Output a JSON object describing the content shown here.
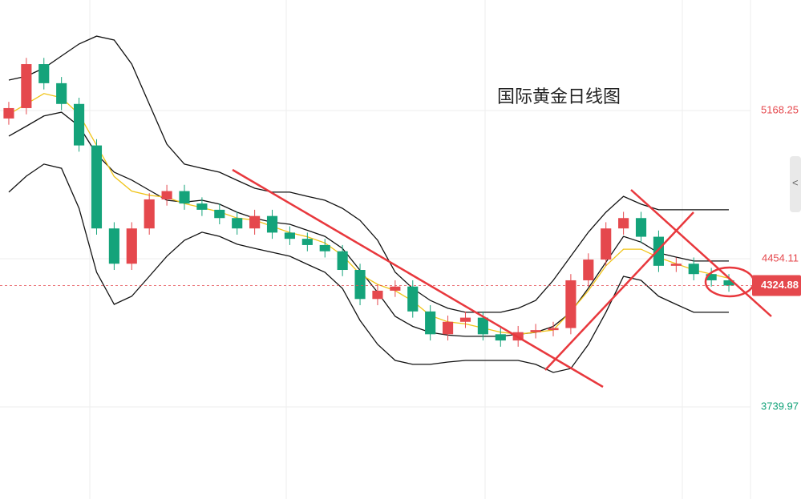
{
  "chart_data": {
    "type": "candlestick",
    "title": "国际黄金日线图",
    "ylim": [
      3296,
      5701
    ],
    "yticks": [
      3739.97,
      4454.11,
      5168.25
    ],
    "grid": true,
    "current_price": 4324.88,
    "up_color": "#e5484d",
    "down_color": "#14a37a",
    "open": [
      5130,
      5180,
      5392,
      5300,
      5200,
      5000,
      4600,
      4430,
      4600,
      4740,
      4780,
      4720,
      4690,
      4650,
      4600,
      4660,
      4580,
      4550,
      4520,
      4490,
      4400,
      4260,
      4300,
      4320,
      4200,
      4090,
      4150,
      4170,
      4090,
      4060,
      4100,
      4110,
      4120,
      4350,
      4450,
      4600,
      4650,
      4560,
      4420,
      4430,
      4380,
      4350
    ],
    "high": [
      5210,
      5422,
      5422,
      5330,
      5230,
      5030,
      4630,
      4630,
      4770,
      4810,
      4810,
      4750,
      4720,
      4680,
      4690,
      4690,
      4610,
      4580,
      4550,
      4520,
      4430,
      4330,
      4350,
      4350,
      4230,
      4180,
      4200,
      4200,
      4120,
      4130,
      4140,
      4150,
      4380,
      4480,
      4630,
      4680,
      4680,
      4590,
      4460,
      4460,
      4410,
      4380
    ],
    "low": [
      5100,
      5150,
      5270,
      5170,
      4970,
      4570,
      4400,
      4400,
      4570,
      4710,
      4690,
      4660,
      4620,
      4570,
      4570,
      4550,
      4520,
      4490,
      4460,
      4370,
      4230,
      4230,
      4270,
      4170,
      4060,
      4060,
      4120,
      4060,
      4030,
      4030,
      4070,
      4080,
      4090,
      4320,
      4420,
      4570,
      4530,
      4390,
      4390,
      4350,
      4320,
      4294.88
    ],
    "close": [
      5180,
      5392,
      5300,
      5200,
      5000,
      4600,
      4430,
      4600,
      4740,
      4780,
      4720,
      4690,
      4650,
      4600,
      4660,
      4580,
      4550,
      4520,
      4490,
      4400,
      4260,
      4300,
      4320,
      4200,
      4090,
      4150,
      4170,
      4090,
      4060,
      4100,
      4110,
      4120,
      4350,
      4450,
      4600,
      4650,
      4560,
      4420,
      4430,
      4380,
      4350,
      4324.88
    ],
    "lines": [
      {
        "color": "#111111",
        "values": [
          5315,
          5334,
          5373,
          5431,
          5489,
          5527,
          5508,
          5392,
          5199,
          5006,
          4910,
          4890,
          4871,
          4832,
          4794,
          4775,
          4775,
          4755,
          4736,
          4697,
          4639,
          4543,
          4389,
          4311,
          4253,
          4215,
          4196,
          4196,
          4196,
          4215,
          4253,
          4350,
          4466,
          4582,
          4678,
          4755,
          4717,
          4690,
          4690,
          4690,
          4690,
          4690
        ]
      },
      {
        "color": "#111111",
        "values": [
          5045,
          5093,
          5142,
          5160,
          5093,
          4958,
          4871,
          4833,
          4784,
          4736,
          4727,
          4736,
          4717,
          4678,
          4649,
          4630,
          4620,
          4591,
          4562,
          4504,
          4398,
          4292,
          4176,
          4128,
          4099,
          4086,
          4080,
          4080,
          4080,
          4090,
          4099,
          4128,
          4196,
          4312,
          4437,
          4562,
          4534,
          4482,
          4462,
          4443,
          4443,
          4443
        ]
      },
      {
        "color": "#111111",
        "values": [
          4775,
          4852,
          4910,
          4890,
          4697,
          4389,
          4234,
          4273,
          4369,
          4466,
          4543,
          4582,
          4562,
          4524,
          4504,
          4485,
          4466,
          4427,
          4389,
          4311,
          4157,
          4041,
          3964,
          3945,
          3945,
          3956,
          3964,
          3964,
          3964,
          3964,
          3945,
          3906,
          3925,
          4041,
          4196,
          4369,
          4350,
          4273,
          4234,
          4196,
          4196,
          4196
        ]
      },
      {
        "color": "#f0c419",
        "values": [
          5150,
          5200,
          5250,
          5230,
          5150,
          5000,
          4850,
          4780,
          4760,
          4750,
          4720,
          4700,
          4680,
          4650,
          4640,
          4610,
          4580,
          4560,
          4530,
          4470,
          4380,
          4330,
          4300,
          4250,
          4180,
          4150,
          4140,
          4120,
          4100,
          4090,
          4100,
          4110,
          4200,
          4300,
          4420,
          4500,
          4500,
          4460,
          4430,
          4400,
          4380,
          4360
        ]
      }
    ]
  }
}
